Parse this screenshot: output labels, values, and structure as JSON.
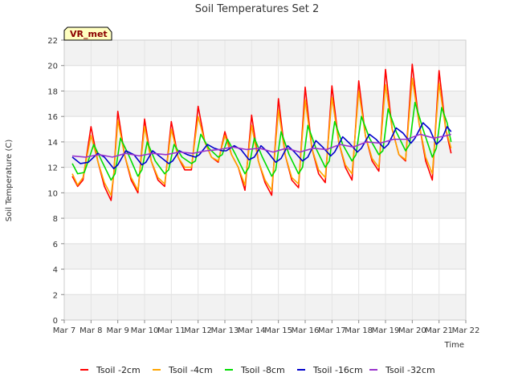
{
  "chart_data": {
    "type": "line",
    "title": "Soil Temperatures Set 2",
    "xlabel": "Time",
    "ylabel": "Soil Temperature (C)",
    "site_label": "VR_met",
    "ylim": [
      0,
      22
    ],
    "y_ticks": [
      0,
      2,
      4,
      6,
      8,
      10,
      12,
      14,
      16,
      18,
      20,
      22
    ],
    "x_ticks": [
      "Mar 7",
      "Mar 8",
      "Mar 9",
      "Mar 10",
      "Mar 11",
      "Mar 12",
      "Mar 13",
      "Mar 14",
      "Mar 15",
      "Mar 16",
      "Mar 17",
      "Mar 18",
      "Mar 19",
      "Mar 20",
      "Mar 21",
      "Mar 22"
    ],
    "grid": true,
    "legend_position": "bottom",
    "x_units": "days after Mar 7 00:00",
    "series": [
      {
        "name": "Tsoil -2cm",
        "color": "#ff0000",
        "points": [
          [
            0.3,
            11.3
          ],
          [
            0.5,
            10.5
          ],
          [
            0.7,
            11.0
          ],
          [
            1.0,
            15.2
          ],
          [
            1.25,
            12.5
          ],
          [
            1.5,
            10.5
          ],
          [
            1.75,
            9.4
          ],
          [
            1.85,
            11.5
          ],
          [
            2.0,
            16.4
          ],
          [
            2.25,
            13.0
          ],
          [
            2.5,
            11.0
          ],
          [
            2.75,
            10.0
          ],
          [
            3.0,
            15.8
          ],
          [
            3.25,
            12.5
          ],
          [
            3.5,
            11.0
          ],
          [
            3.75,
            10.5
          ],
          [
            4.0,
            15.6
          ],
          [
            4.25,
            12.8
          ],
          [
            4.5,
            11.8
          ],
          [
            4.75,
            11.8
          ],
          [
            5.0,
            16.8
          ],
          [
            5.25,
            14.0
          ],
          [
            5.5,
            12.8
          ],
          [
            5.75,
            12.4
          ],
          [
            6.0,
            14.8
          ],
          [
            6.25,
            13.0
          ],
          [
            6.5,
            12.0
          ],
          [
            6.75,
            10.2
          ],
          [
            7.0,
            16.1
          ],
          [
            7.25,
            12.5
          ],
          [
            7.5,
            10.8
          ],
          [
            7.75,
            9.8
          ],
          [
            8.0,
            17.4
          ],
          [
            8.25,
            13.0
          ],
          [
            8.5,
            11.0
          ],
          [
            8.75,
            10.4
          ],
          [
            9.0,
            18.3
          ],
          [
            9.25,
            13.5
          ],
          [
            9.5,
            11.5
          ],
          [
            9.75,
            10.8
          ],
          [
            10.0,
            18.4
          ],
          [
            10.25,
            14.0
          ],
          [
            10.5,
            12.0
          ],
          [
            10.75,
            11.0
          ],
          [
            11.0,
            18.8
          ],
          [
            11.25,
            14.5
          ],
          [
            11.5,
            12.5
          ],
          [
            11.75,
            11.7
          ],
          [
            12.0,
            19.7
          ],
          [
            12.25,
            15.0
          ],
          [
            12.5,
            13.0
          ],
          [
            12.75,
            12.5
          ],
          [
            13.0,
            20.1
          ],
          [
            13.25,
            15.5
          ],
          [
            13.5,
            12.5
          ],
          [
            13.75,
            11.0
          ],
          [
            14.0,
            19.6
          ],
          [
            14.25,
            15.0
          ],
          [
            14.45,
            13.1
          ]
        ]
      },
      {
        "name": "Tsoil -4cm",
        "color": "#ffa500",
        "points": [
          [
            0.3,
            11.5
          ],
          [
            0.5,
            10.6
          ],
          [
            0.7,
            11.2
          ],
          [
            1.0,
            14.5
          ],
          [
            1.25,
            12.5
          ],
          [
            1.5,
            10.8
          ],
          [
            1.75,
            9.8
          ],
          [
            1.85,
            11.5
          ],
          [
            2.0,
            15.7
          ],
          [
            2.25,
            13.0
          ],
          [
            2.5,
            11.2
          ],
          [
            2.75,
            10.2
          ],
          [
            3.0,
            15.2
          ],
          [
            3.25,
            12.5
          ],
          [
            3.5,
            11.2
          ],
          [
            3.75,
            10.7
          ],
          [
            4.0,
            15.0
          ],
          [
            4.25,
            12.8
          ],
          [
            4.5,
            12.0
          ],
          [
            4.75,
            12.0
          ],
          [
            5.0,
            16.0
          ],
          [
            5.25,
            14.0
          ],
          [
            5.5,
            12.8
          ],
          [
            5.75,
            12.5
          ],
          [
            6.0,
            14.5
          ],
          [
            6.25,
            13.0
          ],
          [
            6.5,
            12.0
          ],
          [
            6.75,
            10.6
          ],
          [
            7.0,
            15.3
          ],
          [
            7.25,
            12.5
          ],
          [
            7.5,
            11.0
          ],
          [
            7.75,
            10.2
          ],
          [
            8.0,
            16.5
          ],
          [
            8.25,
            13.0
          ],
          [
            8.5,
            11.2
          ],
          [
            8.75,
            10.7
          ],
          [
            9.0,
            17.3
          ],
          [
            9.25,
            13.5
          ],
          [
            9.5,
            11.8
          ],
          [
            9.75,
            11.2
          ],
          [
            10.0,
            17.5
          ],
          [
            10.25,
            14.0
          ],
          [
            10.5,
            12.2
          ],
          [
            10.75,
            11.5
          ],
          [
            11.0,
            18.0
          ],
          [
            11.25,
            14.5
          ],
          [
            11.5,
            12.7
          ],
          [
            11.75,
            12.0
          ],
          [
            12.0,
            18.5
          ],
          [
            12.25,
            15.0
          ],
          [
            12.5,
            13.0
          ],
          [
            12.75,
            12.6
          ],
          [
            13.0,
            19.0
          ],
          [
            13.25,
            15.5
          ],
          [
            13.5,
            12.8
          ],
          [
            13.75,
            11.5
          ],
          [
            14.0,
            18.6
          ],
          [
            14.25,
            15.0
          ],
          [
            14.45,
            13.5
          ]
        ]
      },
      {
        "name": "Tsoil -8cm",
        "color": "#00dd00",
        "points": [
          [
            0.3,
            12.3
          ],
          [
            0.5,
            11.5
          ],
          [
            0.75,
            11.6
          ],
          [
            1.1,
            13.8
          ],
          [
            1.4,
            12.5
          ],
          [
            1.75,
            11.0
          ],
          [
            1.9,
            11.5
          ],
          [
            2.1,
            14.3
          ],
          [
            2.4,
            13.0
          ],
          [
            2.75,
            11.3
          ],
          [
            2.9,
            11.8
          ],
          [
            3.1,
            14.0
          ],
          [
            3.4,
            12.5
          ],
          [
            3.75,
            11.5
          ],
          [
            3.9,
            11.8
          ],
          [
            4.1,
            13.8
          ],
          [
            4.4,
            12.8
          ],
          [
            4.75,
            12.3
          ],
          [
            4.9,
            12.5
          ],
          [
            5.1,
            14.6
          ],
          [
            5.4,
            13.5
          ],
          [
            5.75,
            12.8
          ],
          [
            5.9,
            13.0
          ],
          [
            6.1,
            14.2
          ],
          [
            6.4,
            13.0
          ],
          [
            6.75,
            11.5
          ],
          [
            6.9,
            12.0
          ],
          [
            7.1,
            14.3
          ],
          [
            7.4,
            12.8
          ],
          [
            7.75,
            11.3
          ],
          [
            7.9,
            11.8
          ],
          [
            8.1,
            14.8
          ],
          [
            8.4,
            13.0
          ],
          [
            8.75,
            11.5
          ],
          [
            8.9,
            12.0
          ],
          [
            9.1,
            15.3
          ],
          [
            9.4,
            13.5
          ],
          [
            9.75,
            12.0
          ],
          [
            9.9,
            12.5
          ],
          [
            10.1,
            15.6
          ],
          [
            10.4,
            13.8
          ],
          [
            10.75,
            12.5
          ],
          [
            10.9,
            13.0
          ],
          [
            11.1,
            16.0
          ],
          [
            11.4,
            14.3
          ],
          [
            11.75,
            13.0
          ],
          [
            11.9,
            13.3
          ],
          [
            12.1,
            16.6
          ],
          [
            12.4,
            14.8
          ],
          [
            12.75,
            13.3
          ],
          [
            12.9,
            13.8
          ],
          [
            13.1,
            17.1
          ],
          [
            13.4,
            15.0
          ],
          [
            13.75,
            12.8
          ],
          [
            13.9,
            13.5
          ],
          [
            14.1,
            16.7
          ],
          [
            14.3,
            15.5
          ],
          [
            14.45,
            14.0
          ]
        ]
      },
      {
        "name": "Tsoil -16cm",
        "color": "#0000cc",
        "points": [
          [
            0.3,
            12.8
          ],
          [
            0.6,
            12.3
          ],
          [
            0.9,
            12.4
          ],
          [
            1.25,
            13.1
          ],
          [
            1.5,
            12.8
          ],
          [
            1.85,
            11.9
          ],
          [
            2.0,
            12.2
          ],
          [
            2.3,
            13.3
          ],
          [
            2.6,
            13.0
          ],
          [
            2.9,
            12.2
          ],
          [
            3.05,
            12.4
          ],
          [
            3.3,
            13.3
          ],
          [
            3.6,
            12.8
          ],
          [
            3.9,
            12.3
          ],
          [
            4.05,
            12.5
          ],
          [
            4.3,
            13.3
          ],
          [
            4.6,
            13.0
          ],
          [
            4.9,
            12.8
          ],
          [
            5.05,
            13.0
          ],
          [
            5.35,
            13.8
          ],
          [
            5.6,
            13.5
          ],
          [
            5.9,
            13.3
          ],
          [
            6.05,
            13.3
          ],
          [
            6.35,
            13.7
          ],
          [
            6.6,
            13.4
          ],
          [
            6.9,
            12.6
          ],
          [
            7.1,
            12.8
          ],
          [
            7.35,
            13.7
          ],
          [
            7.6,
            13.2
          ],
          [
            7.9,
            12.4
          ],
          [
            8.1,
            12.7
          ],
          [
            8.35,
            13.7
          ],
          [
            8.6,
            13.2
          ],
          [
            8.9,
            12.5
          ],
          [
            9.1,
            12.8
          ],
          [
            9.4,
            14.1
          ],
          [
            9.65,
            13.6
          ],
          [
            9.95,
            12.9
          ],
          [
            10.1,
            13.2
          ],
          [
            10.4,
            14.4
          ],
          [
            10.65,
            13.9
          ],
          [
            10.95,
            13.2
          ],
          [
            11.1,
            13.5
          ],
          [
            11.4,
            14.6
          ],
          [
            11.65,
            14.2
          ],
          [
            11.95,
            13.5
          ],
          [
            12.1,
            13.8
          ],
          [
            12.4,
            15.1
          ],
          [
            12.65,
            14.7
          ],
          [
            12.95,
            13.9
          ],
          [
            13.1,
            14.3
          ],
          [
            13.4,
            15.5
          ],
          [
            13.65,
            15.0
          ],
          [
            13.9,
            13.8
          ],
          [
            14.1,
            14.2
          ],
          [
            14.3,
            15.2
          ],
          [
            14.45,
            14.8
          ]
        ]
      },
      {
        "name": "Tsoil -32cm",
        "color": "#9933cc",
        "points": [
          [
            0.3,
            12.9
          ],
          [
            0.8,
            12.8
          ],
          [
            1.3,
            13.0
          ],
          [
            1.8,
            12.8
          ],
          [
            2.3,
            13.1
          ],
          [
            2.8,
            12.9
          ],
          [
            3.3,
            13.1
          ],
          [
            3.8,
            13.0
          ],
          [
            4.3,
            13.2
          ],
          [
            4.8,
            13.1
          ],
          [
            5.3,
            13.3
          ],
          [
            5.8,
            13.4
          ],
          [
            6.3,
            13.6
          ],
          [
            6.8,
            13.4
          ],
          [
            7.3,
            13.5
          ],
          [
            7.8,
            13.2
          ],
          [
            8.3,
            13.5
          ],
          [
            8.8,
            13.2
          ],
          [
            9.3,
            13.5
          ],
          [
            9.8,
            13.4
          ],
          [
            10.3,
            13.8
          ],
          [
            10.8,
            13.6
          ],
          [
            11.3,
            14.0
          ],
          [
            11.8,
            13.9
          ],
          [
            12.3,
            14.2
          ],
          [
            12.8,
            14.2
          ],
          [
            13.3,
            14.6
          ],
          [
            13.8,
            14.3
          ],
          [
            14.3,
            14.5
          ],
          [
            14.45,
            14.6
          ]
        ]
      }
    ]
  }
}
